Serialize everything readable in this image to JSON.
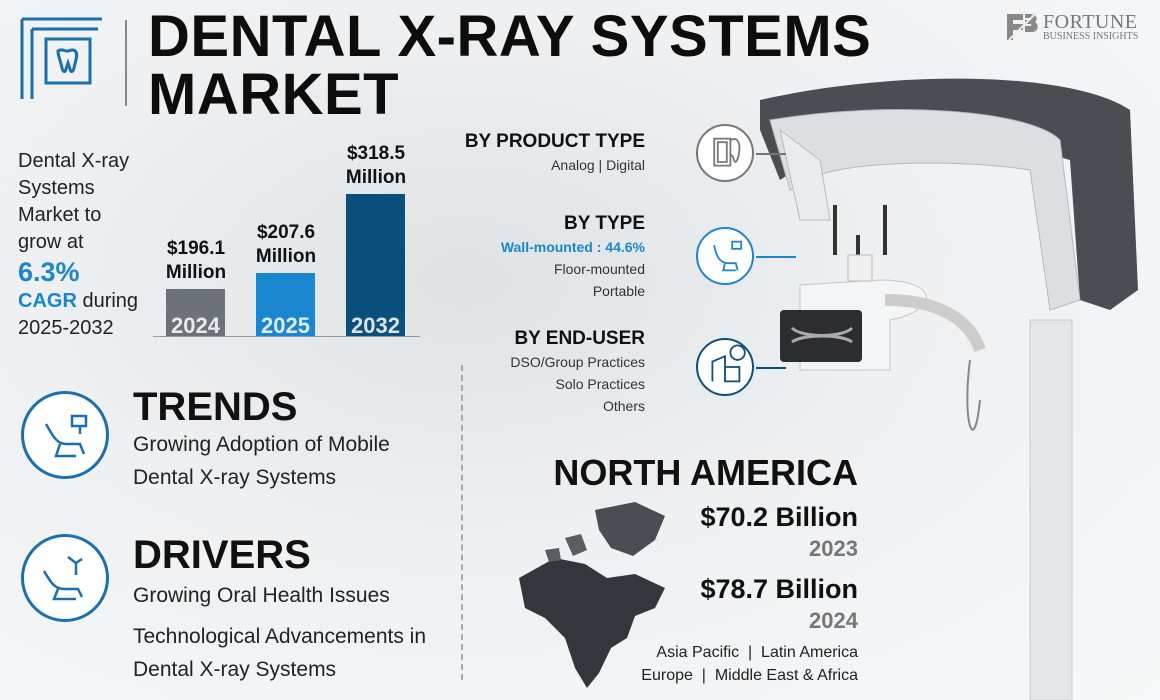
{
  "header": {
    "title_line1": "DENTAL X-RAY SYSTEMS",
    "title_line2": "MARKET",
    "logo_text": "FORTUNE",
    "logo_subtext": "BUSINESS INSIGHTS"
  },
  "intro": {
    "line1": "Dental X-ray Systems Market to grow at",
    "cagr_value": "6.3%",
    "cagr_label": "CAGR",
    "line2": "during 2025-2032"
  },
  "chart_data": {
    "type": "bar",
    "categories": [
      "2024",
      "2025",
      "2032"
    ],
    "values": [
      196.1,
      207.6,
      318.5
    ],
    "labels": [
      "$196.1 Million",
      "$207.6 Million",
      "$318.5 Million"
    ],
    "unit": "Million USD",
    "colors": [
      "#6d7278",
      "#1a86d0",
      "#0b4f7c"
    ]
  },
  "trends": {
    "title": "TRENDS",
    "text": "Growing Adoption of Mobile Dental X-ray Systems"
  },
  "drivers": {
    "title": "DRIVERS",
    "items": [
      "Growing Oral Health Issues",
      "Technological Advancements in Dental X-ray Systems"
    ]
  },
  "segments": [
    {
      "title": "BY PRODUCT TYPE",
      "items": [
        "Analog | Digital"
      ],
      "icon": "dental-xray-film-icon",
      "color": "#777777"
    },
    {
      "title": "BY TYPE",
      "highlight": "Wall-mounted : 44.6%",
      "items": [
        "Floor-mounted",
        "Portable"
      ],
      "icon": "dental-chair-icon",
      "color": "#1a86d0"
    },
    {
      "title": "BY END-USER",
      "items": [
        "DSO/Group Practices",
        "Solo Practices",
        "Others"
      ],
      "icon": "clinic-building-icon",
      "color": "#0b4f7c"
    }
  ],
  "region": {
    "name": "NORTH AMERICA",
    "value1": "$70.2 Billion",
    "year1": "2023",
    "value2": "$78.7 Billion",
    "year2": "2024",
    "others_line1": "Asia Pacific  |  Latin America",
    "others_line2": "Europe  |  Middle East & Africa"
  }
}
